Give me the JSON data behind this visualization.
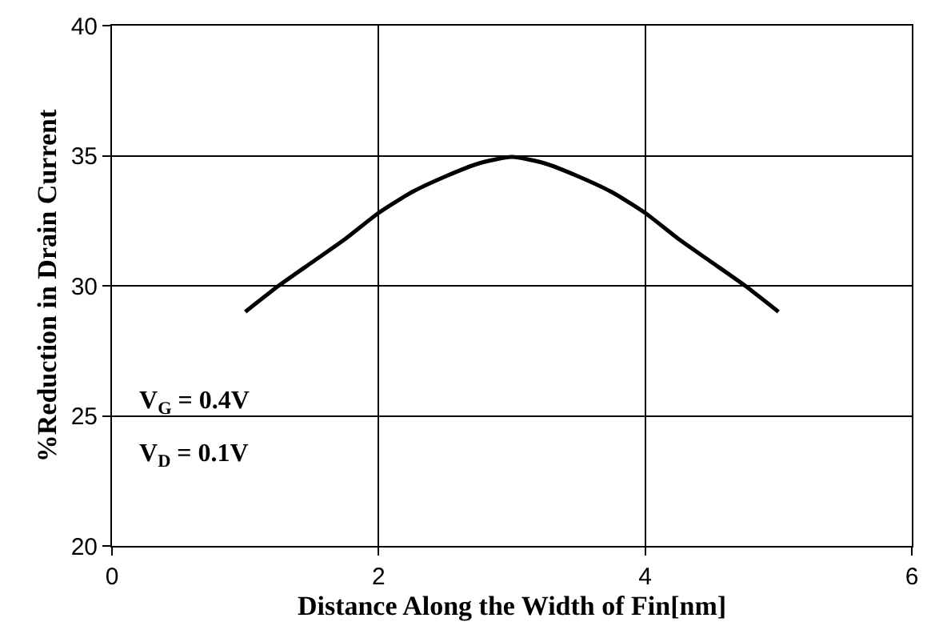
{
  "chart_data": {
    "type": "line",
    "xlabel": "Distance Along the Width of Fin[nm]",
    "ylabel": "%Reduction in Drain Current",
    "x": [
      1,
      1.25,
      1.5,
      1.75,
      2,
      2.25,
      2.5,
      2.75,
      3,
      3.25,
      3.5,
      3.75,
      4,
      4.25,
      4.5,
      4.75,
      5
    ],
    "series": [
      {
        "color": "#000000",
        "values": [
          29,
          30,
          30.9,
          31.8,
          32.8,
          33.6,
          34.2,
          34.7,
          34.95,
          34.7,
          34.2,
          33.6,
          32.8,
          31.8,
          30.9,
          30,
          29
        ]
      }
    ],
    "xlim": [
      0,
      6
    ],
    "xticks": [
      0,
      2,
      4,
      6
    ],
    "ylim": [
      20,
      40
    ],
    "yticks": [
      20,
      25,
      30,
      35,
      40
    ],
    "grid": true,
    "legend": false,
    "marker": "none",
    "line_style": "solid",
    "annotations": [
      "V$_{G}$ = 0.4V",
      "V$_{D}$ = 0.1V"
    ]
  }
}
